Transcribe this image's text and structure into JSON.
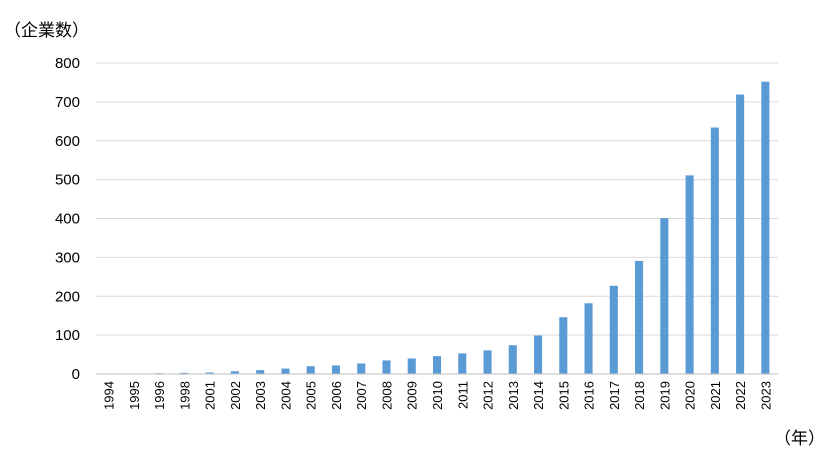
{
  "chart_data": {
    "type": "bar",
    "title": "",
    "ylabel": "（企業数）",
    "xlabel": "（年）",
    "categories": [
      "1994",
      "1995",
      "1996",
      "1998",
      "2001",
      "2002",
      "2003",
      "2004",
      "2005",
      "2006",
      "2007",
      "2008",
      "2009",
      "2010",
      "2011",
      "2012",
      "2013",
      "2014",
      "2015",
      "2016",
      "2017",
      "2018",
      "2019",
      "2020",
      "2021",
      "2022",
      "2023"
    ],
    "values": [
      1,
      1,
      2,
      3,
      4,
      7,
      10,
      14,
      20,
      22,
      27,
      35,
      40,
      46,
      53,
      61,
      74,
      99,
      146,
      182,
      227,
      291,
      401,
      511,
      634,
      719,
      752
    ],
    "ylim": [
      0,
      800
    ],
    "yticks": [
      0,
      100,
      200,
      300,
      400,
      500,
      600,
      700,
      800
    ],
    "grid": true,
    "legend": "none",
    "bar_color": "#5B9BD5",
    "grid_color": "#D9D9D9"
  }
}
